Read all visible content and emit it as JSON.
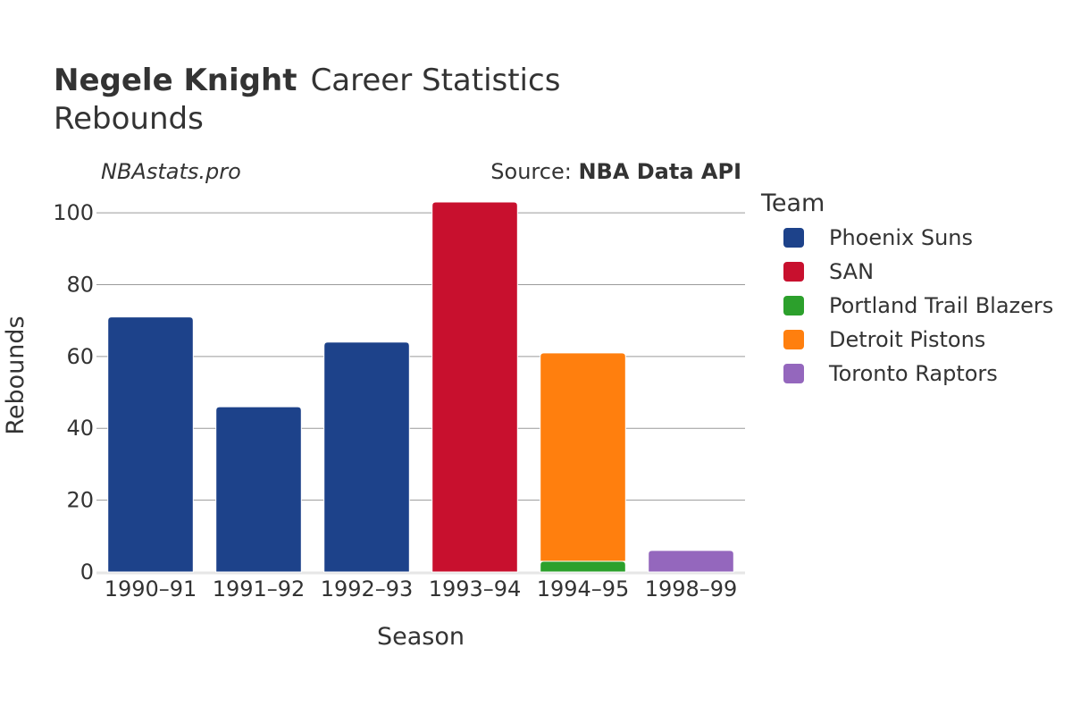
{
  "chart_data": {
    "type": "bar",
    "stacked": true,
    "title_bold": "Negele Knight",
    "title_rest": "Career Statistics",
    "subtitle": "Rebounds",
    "watermark": "NBAstats.pro",
    "source_prefix": "Source: ",
    "source_bold": "NBA Data API",
    "xlabel": "Season",
    "ylabel": "Rebounds",
    "ylim": [
      0,
      105
    ],
    "yticks": [
      0,
      20,
      40,
      60,
      80,
      100
    ],
    "grid": true,
    "legend_title": "Team",
    "legend_position": "right",
    "categories": [
      "1990–91",
      "1991–92",
      "1992–93",
      "1993–94",
      "1994–95",
      "1998–99"
    ],
    "series": [
      {
        "name": "Phoenix Suns",
        "color": "#1d428a",
        "values": [
          71,
          46,
          64,
          0,
          0,
          0
        ]
      },
      {
        "name": "SAN",
        "color": "#c8102e",
        "values": [
          0,
          0,
          0,
          103,
          0,
          0
        ]
      },
      {
        "name": "Portland Trail Blazers",
        "color": "#2ca02c",
        "values": [
          0,
          0,
          0,
          0,
          3,
          0
        ]
      },
      {
        "name": "Detroit Pistons",
        "color": "#ff7f0e",
        "values": [
          0,
          0,
          0,
          0,
          58,
          0
        ]
      },
      {
        "name": "Toronto Raptors",
        "color": "#9467bd",
        "values": [
          0,
          0,
          0,
          0,
          0,
          6
        ]
      }
    ]
  }
}
